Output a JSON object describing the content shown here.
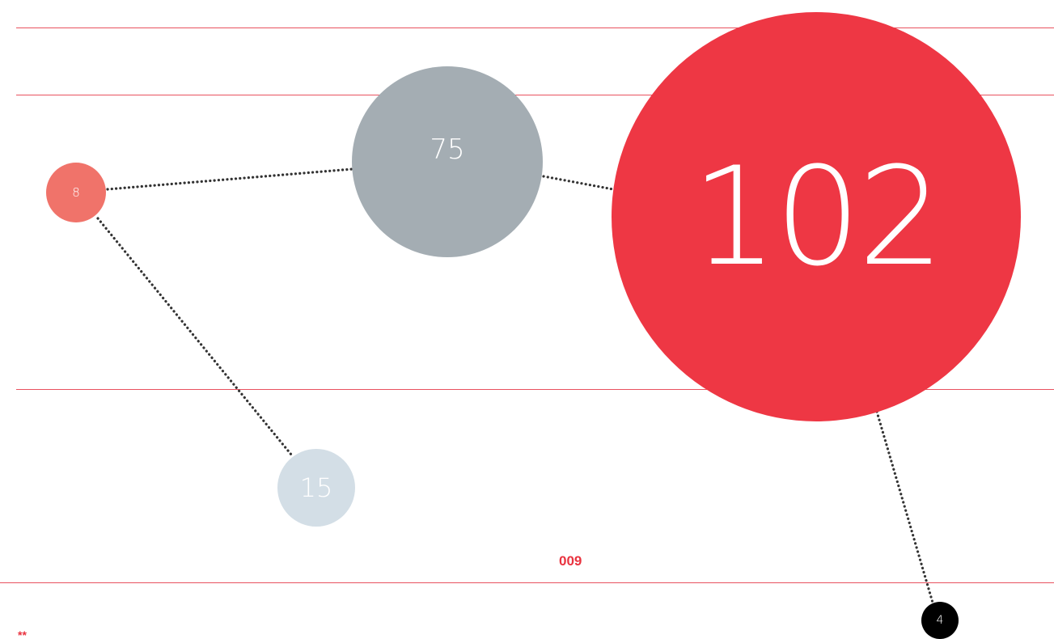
{
  "bubbles": {
    "small_coral": {
      "value": "8",
      "color": "#f0736a"
    },
    "gray": {
      "value": "75",
      "color": "#a4adb3"
    },
    "light_blue": {
      "value": "15",
      "color": "#d3dee6"
    },
    "large_red": {
      "value": "102",
      "color": "#ee3744"
    },
    "black": {
      "value": "4",
      "color": "#000000"
    }
  },
  "page_number": "009",
  "corner_mark": "**",
  "colors": {
    "rule_lines": "#e9525f",
    "connector": "#333333",
    "accent_text": "#e9333f"
  }
}
